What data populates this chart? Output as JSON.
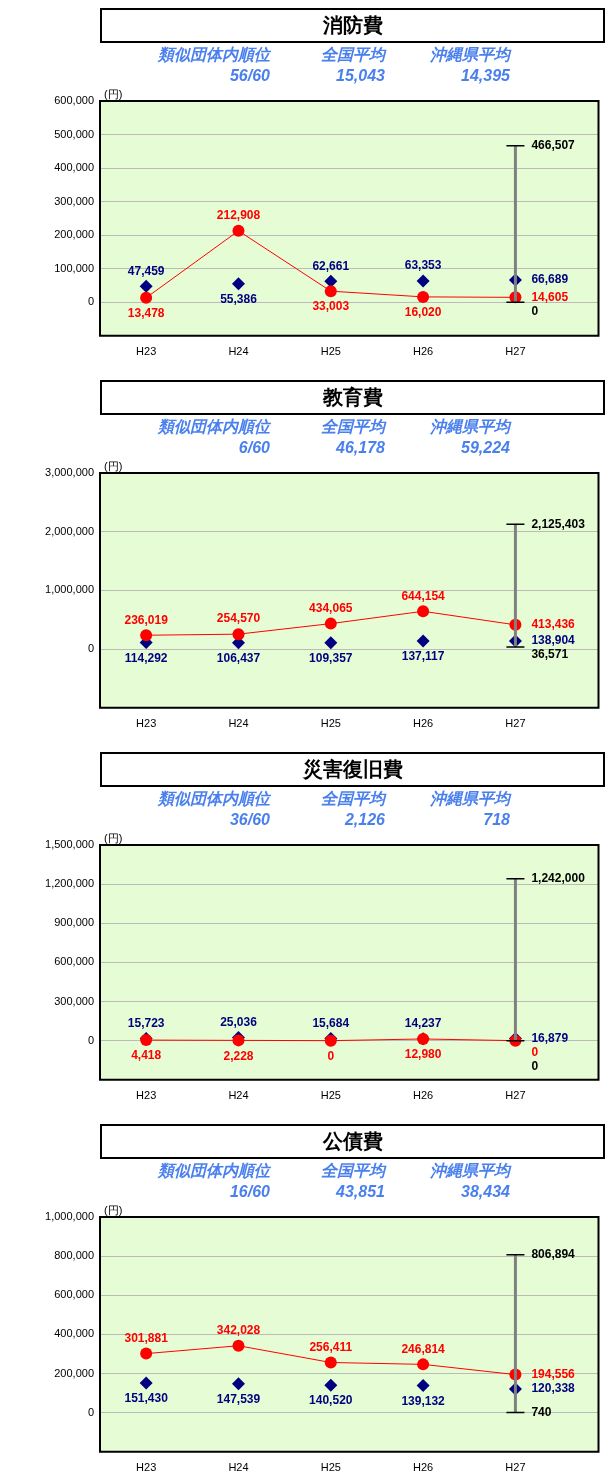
{
  "chart_data": [
    {
      "type": "line",
      "title": "消防費",
      "ylabel": "(円)",
      "annotations": [
        "類似団体内順位",
        "56/60",
        "全国平均",
        "15,043",
        "沖縄県平均",
        "14,395",
        {
          "text": "466,507",
          "x": "H27",
          "y": 466507
        },
        {
          "text": "0",
          "x": "H27",
          "y": 0
        }
      ],
      "categories": [
        "H23",
        "H24",
        "H25",
        "H26",
        "H27"
      ],
      "series": [
        {
          "type": "line",
          "color": "#ff0000",
          "marker": "circle",
          "values": [
            13478,
            212908,
            33003,
            16020,
            14605
          ],
          "value_labels": [
            "13,478",
            "212,908",
            "33,003",
            "16,020",
            "14,605"
          ]
        },
        {
          "type": "scatter",
          "color": "#000080",
          "marker": "diamond",
          "values": [
            47459,
            55386,
            62661,
            63353,
            66689
          ],
          "value_labels": [
            "47,459",
            "55,386",
            "62,661",
            "63,353",
            "66,689"
          ],
          "errors": [
            null,
            null,
            null,
            null,
            [
              0,
              466507
            ]
          ]
        }
      ],
      "ylim": [
        -100000,
        600000
      ],
      "yticks": [
        {
          "value": 0,
          "label": "0"
        },
        {
          "value": 100000,
          "label": "100,000"
        },
        {
          "value": 200000,
          "label": "200,000"
        },
        {
          "value": 300000,
          "label": "300,000"
        },
        {
          "value": 400000,
          "label": "400,000"
        },
        {
          "value": 500000,
          "label": "500,000"
        },
        {
          "value": 600000,
          "label": "600,000"
        }
      ],
      "grid": "y"
    },
    {
      "type": "line",
      "title": "教育費",
      "ylabel": "(円)",
      "annotations": [
        "類似団体内順位",
        "6/60",
        "全国平均",
        "46,178",
        "沖縄県平均",
        "59,224",
        {
          "text": "2,125,403",
          "x": "H27",
          "y": 2125403
        },
        {
          "text": "36,571",
          "x": "H27",
          "y": 36571
        }
      ],
      "categories": [
        "H23",
        "H24",
        "H25",
        "H26",
        "H27"
      ],
      "series": [
        {
          "type": "line",
          "color": "#ff0000",
          "marker": "circle",
          "values": [
            236019,
            254570,
            434065,
            644154,
            413436
          ],
          "value_labels": [
            "236,019",
            "254,570",
            "434,065",
            "644,154",
            "413,436"
          ]
        },
        {
          "type": "scatter",
          "color": "#000080",
          "marker": "diamond",
          "values": [
            114292,
            106437,
            109357,
            137117,
            138904
          ],
          "value_labels": [
            "114,292",
            "106,437",
            "109,357",
            "137,117",
            "138,904"
          ],
          "errors": [
            null,
            null,
            null,
            null,
            [
              36571,
              2125403
            ]
          ]
        }
      ],
      "ylim": [
        -1000000,
        3000000
      ],
      "yticks": [
        {
          "value": 0,
          "label": "0"
        },
        {
          "value": 1000000,
          "label": "1,000,000"
        },
        {
          "value": 2000000,
          "label": "2,000,000"
        },
        {
          "value": 3000000,
          "label": "3,000,000"
        }
      ],
      "grid": "y"
    },
    {
      "type": "line",
      "title": "災害復旧費",
      "ylabel": "(円)",
      "annotations": [
        "類似団体内順位",
        "36/60",
        "全国平均",
        "2,126",
        "沖縄県平均",
        "718",
        {
          "text": "1,242,000",
          "x": "H27",
          "y": 1242000
        },
        {
          "text": "0",
          "x": "H27",
          "y": 0
        }
      ],
      "categories": [
        "H23",
        "H24",
        "H25",
        "H26",
        "H27"
      ],
      "series": [
        {
          "type": "line",
          "color": "#ff0000",
          "marker": "circle",
          "values": [
            4418,
            2228,
            0,
            12980,
            0
          ],
          "value_labels": [
            "4,418",
            "2,228",
            "0",
            "12,980",
            "0"
          ]
        },
        {
          "type": "scatter",
          "color": "#000080",
          "marker": "diamond",
          "values": [
            15723,
            25036,
            15684,
            14237,
            16879
          ],
          "value_labels": [
            "15,723",
            "25,036",
            "15,684",
            "14,237",
            "16,879"
          ],
          "errors": [
            null,
            null,
            null,
            null,
            [
              0,
              1242000
            ]
          ]
        }
      ],
      "ylim": [
        -300000,
        1500000
      ],
      "yticks": [
        {
          "value": 0,
          "label": "0"
        },
        {
          "value": 300000,
          "label": "300,000"
        },
        {
          "value": 600000,
          "label": "600,000"
        },
        {
          "value": 900000,
          "label": "900,000"
        },
        {
          "value": 1200000,
          "label": "1,200,000"
        },
        {
          "value": 1500000,
          "label": "1,500,000"
        }
      ],
      "grid": "y"
    },
    {
      "type": "line",
      "title": "公債費",
      "ylabel": "(円)",
      "annotations": [
        "類似団体内順位",
        "16/60",
        "全国平均",
        "43,851",
        "沖縄県平均",
        "38,434",
        {
          "text": "806,894",
          "x": "H27",
          "y": 806894
        },
        {
          "text": "740",
          "x": "H27",
          "y": 740
        }
      ],
      "categories": [
        "H23",
        "H24",
        "H25",
        "H26",
        "H27"
      ],
      "series": [
        {
          "type": "line",
          "color": "#ff0000",
          "marker": "circle",
          "values": [
            301881,
            342028,
            256411,
            246814,
            194556
          ],
          "value_labels": [
            "301,881",
            "342,028",
            "256,411",
            "246,814",
            "194,556"
          ]
        },
        {
          "type": "scatter",
          "color": "#000080",
          "marker": "diamond",
          "values": [
            151430,
            147539,
            140520,
            139132,
            120338
          ],
          "value_labels": [
            "151,430",
            "147,539",
            "140,520",
            "139,132",
            "120,338"
          ],
          "errors": [
            null,
            null,
            null,
            null,
            [
              740,
              806894
            ]
          ]
        }
      ],
      "ylim": [
        -200000,
        1000000
      ],
      "yticks": [
        {
          "value": 0,
          "label": "0"
        },
        {
          "value": 200000,
          "label": "200,000"
        },
        {
          "value": 400000,
          "label": "400,000"
        },
        {
          "value": 600000,
          "label": "600,000"
        },
        {
          "value": 800000,
          "label": "800,000"
        },
        {
          "value": 1000000,
          "label": "1,000,000"
        }
      ],
      "grid": "y"
    }
  ]
}
